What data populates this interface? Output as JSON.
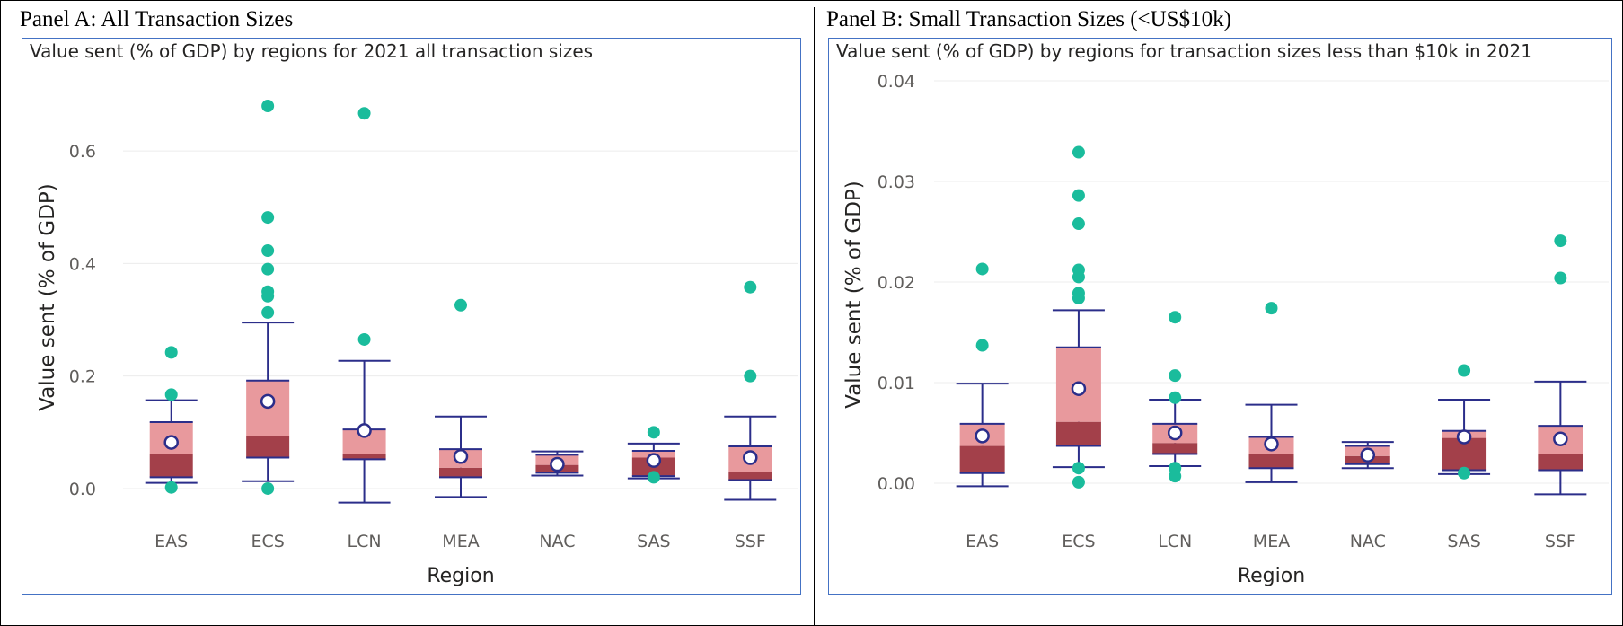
{
  "panels": [
    {
      "label": "Panel A: All Transaction Sizes"
    },
    {
      "label": "Panel B: Small Transaction Sizes (<US$10k)"
    }
  ],
  "colors": {
    "frame": "#4472c4",
    "whisker": "#2b2e8a",
    "upper_box": "#e8999d",
    "lower_box": "#a3404a",
    "outlier": "#1abc9c",
    "mean_fill": "#ffffff",
    "grid": "#ececec",
    "text": "#252423"
  },
  "chart_data": [
    {
      "type": "box",
      "title": "Value sent (% of GDP) by regions for 2021 all transaction sizes",
      "xlabel": "Region",
      "ylabel": "Value sent (% of GDP)",
      "ylim": [
        -0.04,
        0.72
      ],
      "yticks": [
        0.0,
        0.2,
        0.4,
        0.6
      ],
      "ytick_labels": [
        "0.0",
        "0.2",
        "0.4",
        "0.6"
      ],
      "grid": true,
      "categories": [
        "EAS",
        "ECS",
        "LCN",
        "MEA",
        "NAC",
        "SAS",
        "SSF"
      ],
      "boxes": [
        {
          "min": 0.01,
          "q1": 0.02,
          "median": 0.062,
          "q3": 0.118,
          "max": 0.157,
          "mean": 0.082,
          "outliers": [
            0.242,
            0.167,
            0.002
          ]
        },
        {
          "min": 0.013,
          "q1": 0.055,
          "median": 0.093,
          "q3": 0.192,
          "max": 0.295,
          "mean": 0.155,
          "outliers": [
            0.68,
            0.482,
            0.423,
            0.39,
            0.35,
            0.342,
            0.313,
            0.0
          ]
        },
        {
          "min": -0.025,
          "q1": 0.052,
          "median": 0.062,
          "q3": 0.105,
          "max": 0.227,
          "mean": 0.103,
          "outliers": [
            0.667,
            0.265
          ]
        },
        {
          "min": -0.015,
          "q1": 0.02,
          "median": 0.037,
          "q3": 0.07,
          "max": 0.128,
          "mean": 0.057,
          "outliers": [
            0.326
          ]
        },
        {
          "min": 0.023,
          "q1": 0.028,
          "median": 0.042,
          "q3": 0.06,
          "max": 0.066,
          "mean": 0.043,
          "outliers": []
        },
        {
          "min": 0.018,
          "q1": 0.022,
          "median": 0.055,
          "q3": 0.067,
          "max": 0.08,
          "mean": 0.05,
          "outliers": [
            0.1,
            0.02
          ]
        },
        {
          "min": -0.02,
          "q1": 0.015,
          "median": 0.03,
          "q3": 0.075,
          "max": 0.128,
          "mean": 0.055,
          "outliers": [
            0.358,
            0.2
          ]
        }
      ]
    },
    {
      "type": "box",
      "title": "Value sent (% of GDP) by regions for transaction sizes less than $10k in 2021",
      "xlabel": "Region",
      "ylabel": "Value sent (% of GDP)",
      "ylim": [
        -0.0025,
        0.04
      ],
      "yticks": [
        0.0,
        0.01,
        0.02,
        0.03,
        0.04
      ],
      "ytick_labels": [
        "0.00",
        "0.01",
        "0.02",
        "0.03",
        "0.04"
      ],
      "grid": true,
      "categories": [
        "EAS",
        "ECS",
        "LCN",
        "MEA",
        "NAC",
        "SAS",
        "SSF"
      ],
      "boxes": [
        {
          "min": -0.0003,
          "q1": 0.001,
          "median": 0.0037,
          "q3": 0.0059,
          "max": 0.0099,
          "mean": 0.0047,
          "outliers": [
            0.0213,
            0.0137
          ]
        },
        {
          "min": 0.0016,
          "q1": 0.0037,
          "median": 0.0061,
          "q3": 0.0135,
          "max": 0.0172,
          "mean": 0.0094,
          "outliers": [
            0.0329,
            0.0286,
            0.0258,
            0.0212,
            0.0205,
            0.0189,
            0.0184,
            0.0015,
            0.0001
          ]
        },
        {
          "min": 0.0017,
          "q1": 0.0029,
          "median": 0.004,
          "q3": 0.0059,
          "max": 0.0083,
          "mean": 0.005,
          "outliers": [
            0.0165,
            0.0107,
            0.0085,
            0.0015,
            0.0007
          ]
        },
        {
          "min": 0.0001,
          "q1": 0.0015,
          "median": 0.0029,
          "q3": 0.0046,
          "max": 0.0078,
          "mean": 0.0039,
          "outliers": [
            0.0174
          ]
        },
        {
          "min": 0.0015,
          "q1": 0.0019,
          "median": 0.0027,
          "q3": 0.0037,
          "max": 0.0041,
          "mean": 0.0028,
          "outliers": []
        },
        {
          "min": 0.0009,
          "q1": 0.0013,
          "median": 0.0045,
          "q3": 0.0052,
          "max": 0.0083,
          "mean": 0.0046,
          "outliers": [
            0.0112,
            0.001
          ]
        },
        {
          "min": -0.0011,
          "q1": 0.0013,
          "median": 0.0029,
          "q3": 0.0057,
          "max": 0.0101,
          "mean": 0.0044,
          "outliers": [
            0.0241,
            0.0204
          ]
        }
      ]
    }
  ]
}
